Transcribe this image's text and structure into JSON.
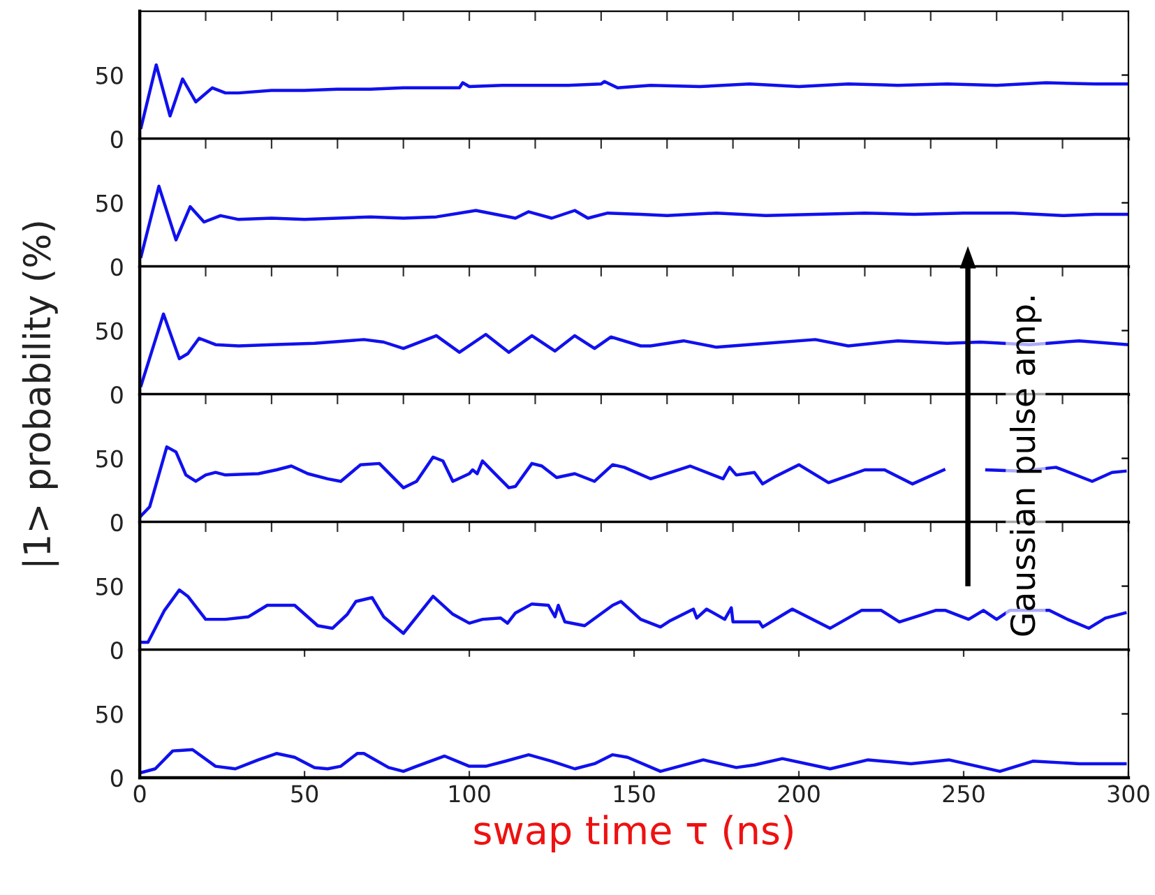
{
  "chart_data": [
    {
      "type": "line",
      "ylabel": "|1> probability (%)",
      "xlim": [
        0,
        300
      ],
      "ylim": [
        0,
        100
      ],
      "yticks": [
        0,
        50
      ],
      "xticks": [
        {
          "value": 0,
          "label": null
        },
        {
          "value": 20,
          "label": null
        },
        {
          "value": 40,
          "label": null
        },
        {
          "value": 60,
          "label": null
        },
        {
          "value": 80,
          "label": null
        },
        {
          "value": 100,
          "label": null
        },
        {
          "value": 120,
          "label": null
        },
        {
          "value": 140,
          "label": null
        },
        {
          "value": 160,
          "label": null
        },
        {
          "value": 180,
          "label": null
        },
        {
          "value": 200,
          "label": null
        },
        {
          "value": 220,
          "label": null
        },
        {
          "value": 240,
          "label": null
        },
        {
          "value": 260,
          "label": null
        },
        {
          "value": 280,
          "label": null
        },
        {
          "value": 300,
          "label": null
        }
      ],
      "tick_labels": "y",
      "grid": false,
      "legend": false,
      "series": [
        {
          "color": "#1010ee",
          "x": [
            0.4,
            5,
            9.2,
            13,
            17,
            22,
            26,
            30,
            40,
            50,
            60,
            70,
            80,
            90,
            97,
            98,
            100,
            110,
            120,
            130,
            140,
            141,
            145,
            155,
            170,
            185,
            200,
            215,
            230,
            245,
            260,
            275,
            290,
            300
          ],
          "values": [
            9,
            58,
            18,
            47,
            29,
            40,
            36,
            36,
            38,
            38,
            39,
            39,
            40,
            40,
            40,
            44,
            41,
            42,
            42,
            42,
            43,
            45,
            40,
            42,
            41,
            43,
            41,
            43,
            42,
            43,
            42,
            44,
            43,
            43
          ]
        }
      ]
    },
    {
      "type": "line",
      "xlim": [
        0,
        300
      ],
      "ylim": [
        0,
        100
      ],
      "yticks": [
        0,
        50
      ],
      "xticks": [
        {
          "value": 0,
          "label": null
        },
        {
          "value": 20,
          "label": null
        },
        {
          "value": 40,
          "label": null
        },
        {
          "value": 60,
          "label": null
        },
        {
          "value": 80,
          "label": null
        },
        {
          "value": 100,
          "label": null
        },
        {
          "value": 120,
          "label": null
        },
        {
          "value": 140,
          "label": null
        },
        {
          "value": 160,
          "label": null
        },
        {
          "value": 180,
          "label": null
        },
        {
          "value": 200,
          "label": null
        },
        {
          "value": 220,
          "label": null
        },
        {
          "value": 240,
          "label": null
        },
        {
          "value": 260,
          "label": null
        },
        {
          "value": 280,
          "label": null
        },
        {
          "value": 300,
          "label": null
        }
      ],
      "tick_labels": "y",
      "grid": false,
      "legend": false,
      "series": [
        {
          "color": "#1010ee",
          "x": [
            0.4,
            5.8,
            11,
            15.3,
            19.5,
            24.5,
            30,
            40,
            50,
            60,
            70,
            80,
            90,
            102,
            114,
            118,
            125,
            132,
            136,
            142,
            152,
            160,
            175,
            190,
            205,
            220,
            235,
            250,
            265,
            280,
            290,
            300
          ],
          "values": [
            8,
            63,
            21,
            47,
            35,
            40,
            37,
            38,
            37,
            38,
            39,
            38,
            39,
            44,
            38,
            43,
            38,
            44,
            38,
            42,
            41,
            40,
            42,
            40,
            41,
            42,
            41,
            42,
            42,
            40,
            41,
            41
          ]
        }
      ]
    },
    {
      "type": "line",
      "xlim": [
        0,
        300
      ],
      "ylim": [
        0,
        100
      ],
      "yticks": [
        0,
        50
      ],
      "xticks": [
        {
          "value": 0,
          "label": null
        },
        {
          "value": 20,
          "label": null
        },
        {
          "value": 40,
          "label": null
        },
        {
          "value": 60,
          "label": null
        },
        {
          "value": 80,
          "label": null
        },
        {
          "value": 100,
          "label": null
        },
        {
          "value": 120,
          "label": null
        },
        {
          "value": 140,
          "label": null
        },
        {
          "value": 160,
          "label": null
        },
        {
          "value": 180,
          "label": null
        },
        {
          "value": 200,
          "label": null
        },
        {
          "value": 220,
          "label": null
        },
        {
          "value": 240,
          "label": null
        },
        {
          "value": 260,
          "label": null
        },
        {
          "value": 280,
          "label": null
        },
        {
          "value": 300,
          "label": null
        }
      ],
      "tick_labels": "y",
      "grid": false,
      "legend": false,
      "series": [
        {
          "color": "#1010ee",
          "x": [
            0.4,
            7.2,
            12,
            14.6,
            18,
            23,
            30,
            40,
            53,
            68,
            74,
            80,
            90,
            97,
            105,
            112,
            119,
            126,
            132,
            138,
            143,
            152,
            155,
            165,
            175,
            190,
            205,
            215,
            230,
            245,
            255,
            270,
            285,
            300
          ],
          "values": [
            7,
            63,
            28,
            32,
            44,
            39,
            38,
            39,
            40,
            43,
            41,
            36,
            46,
            33,
            47,
            33,
            46,
            34,
            46,
            36,
            45,
            38,
            38,
            42,
            37,
            40,
            43,
            38,
            42,
            40,
            41,
            39,
            42,
            39
          ]
        }
      ]
    },
    {
      "type": "line",
      "xlim": [
        0,
        300
      ],
      "ylim": [
        0,
        100
      ],
      "yticks": [
        0,
        50
      ],
      "xticks": [
        {
          "value": 0,
          "label": null
        },
        {
          "value": 20,
          "label": null
        },
        {
          "value": 40,
          "label": null
        },
        {
          "value": 60,
          "label": null
        },
        {
          "value": 80,
          "label": null
        },
        {
          "value": 100,
          "label": null
        },
        {
          "value": 120,
          "label": null
        },
        {
          "value": 140,
          "label": null
        },
        {
          "value": 160,
          "label": null
        },
        {
          "value": 180,
          "label": null
        },
        {
          "value": 200,
          "label": null
        },
        {
          "value": 220,
          "label": null
        },
        {
          "value": 240,
          "label": null
        },
        {
          "value": 260,
          "label": null
        },
        {
          "value": 280,
          "label": null
        },
        {
          "value": 300,
          "label": null
        }
      ],
      "tick_labels": "y",
      "grid": false,
      "legend": false,
      "series": [
        {
          "color": "#1010ee",
          "x": [
            0.4,
            3,
            8.2,
            11,
            14,
            17,
            20,
            23,
            26,
            36,
            41.5,
            46,
            51,
            57,
            61,
            67,
            72.7,
            80,
            84,
            89,
            92,
            95,
            100,
            101,
            102.4,
            104,
            107,
            112,
            114,
            119,
            122,
            126.5,
            132,
            138,
            143.5,
            147,
            155,
            167,
            177,
            179,
            181,
            186.5,
            189,
            193,
            200,
            209,
            220,
            226,
            234.5,
            244,
            251,
            257,
            267,
            278,
            289,
            295,
            299
          ],
          "values": [
            5,
            12,
            59,
            55,
            37,
            32,
            37,
            39,
            37,
            38,
            41,
            44,
            38,
            34,
            32,
            45,
            46,
            27,
            32,
            51,
            48,
            32,
            38,
            41,
            38,
            48,
            40,
            27,
            28,
            46,
            44,
            35,
            38,
            32,
            45,
            43,
            34,
            44,
            34,
            43,
            37,
            39,
            30,
            36,
            45,
            31,
            41,
            41,
            30,
            41,
            null,
            41,
            40,
            43,
            32,
            39,
            40
          ]
        }
      ]
    },
    {
      "type": "line",
      "xlim": [
        0,
        300
      ],
      "ylim": [
        0,
        100
      ],
      "yticks": [
        0,
        50
      ],
      "xticks": [
        {
          "value": 0,
          "label": null
        },
        {
          "value": 20,
          "label": null
        },
        {
          "value": 40,
          "label": null
        },
        {
          "value": 60,
          "label": null
        },
        {
          "value": 80,
          "label": null
        },
        {
          "value": 100,
          "label": null
        },
        {
          "value": 120,
          "label": null
        },
        {
          "value": 140,
          "label": null
        },
        {
          "value": 160,
          "label": null
        },
        {
          "value": 180,
          "label": null
        },
        {
          "value": 200,
          "label": null
        },
        {
          "value": 220,
          "label": null
        },
        {
          "value": 240,
          "label": null
        },
        {
          "value": 260,
          "label": null
        },
        {
          "value": 280,
          "label": null
        },
        {
          "value": 300,
          "label": null
        }
      ],
      "tick_labels": "y",
      "grid": false,
      "legend": false,
      "series": [
        {
          "color": "#1010ee",
          "x": [
            0.4,
            2.5,
            7.5,
            12,
            14.6,
            20,
            26,
            33,
            38.7,
            47,
            54,
            58.5,
            63,
            65.6,
            70.5,
            74,
            80,
            89,
            95,
            100,
            104,
            109.5,
            111.6,
            114,
            119,
            124,
            126,
            127,
            129,
            135,
            143.5,
            146,
            152,
            158,
            161,
            168,
            169,
            172,
            177.5,
            179.5,
            180,
            188,
            189,
            198,
            209.5,
            219,
            225,
            230.5,
            241.5,
            244.5,
            251.5,
            256,
            260,
            264,
            276,
            281.5,
            288,
            293,
            299
          ],
          "values": [
            6,
            6,
            31,
            47,
            42,
            24,
            24,
            26,
            35,
            35,
            19,
            17,
            28,
            38,
            41,
            26,
            13,
            42,
            28,
            21,
            24,
            25,
            21,
            29,
            36,
            35,
            26,
            35,
            22,
            19,
            35,
            38,
            24,
            18,
            23,
            32,
            25,
            32,
            24,
            33,
            22,
            22,
            18,
            32,
            17,
            31,
            31,
            22,
            31,
            31,
            24,
            31,
            24,
            31,
            31,
            24,
            17,
            25,
            29
          ]
        }
      ]
    },
    {
      "type": "line",
      "xlabel": "swap time τ (ns)",
      "xlim": [
        0,
        300
      ],
      "ylim": [
        0,
        100
      ],
      "yticks": [
        0,
        50
      ],
      "xticks": [
        0,
        50,
        100,
        150,
        200,
        250,
        300
      ],
      "grid": false,
      "legend": false,
      "annotations": [
        "Gaussian pulse amp."
      ],
      "series": [
        {
          "color": "#1010ee",
          "x": [
            0.4,
            4.7,
            10,
            16,
            23,
            29,
            36,
            41.5,
            47,
            53,
            57,
            61,
            66,
            68,
            75.5,
            80,
            84,
            92.5,
            100,
            105,
            111,
            118,
            125,
            132,
            138,
            143.5,
            148,
            158,
            171,
            181,
            186.5,
            195,
            209.5,
            221,
            234,
            245.5,
            261,
            271,
            285,
            299
          ],
          "values": [
            4,
            7,
            21,
            22,
            9,
            7,
            14,
            19,
            16,
            8,
            7,
            9,
            19,
            19,
            8,
            5,
            9,
            17,
            9,
            9,
            13,
            18,
            13,
            7,
            11,
            18,
            16,
            5,
            14,
            8,
            10,
            15,
            7,
            14,
            11,
            14,
            5,
            13,
            11,
            11
          ]
        }
      ]
    }
  ]
}
